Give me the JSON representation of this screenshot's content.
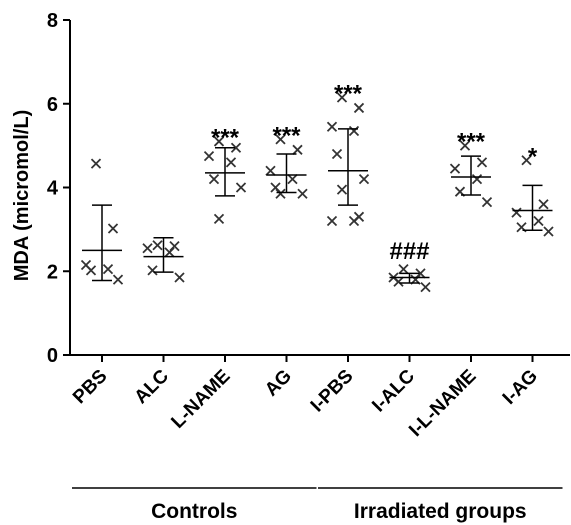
{
  "chart_data": {
    "type": "scatter",
    "ylabel": "MDA (micromol/L)",
    "ylim": [
      0,
      8
    ],
    "yticks": [
      "0",
      "2",
      "4",
      "6",
      "8"
    ],
    "categories": [
      "PBS",
      "ALC",
      "L-NAME",
      "AG",
      "I-PBS",
      "I-ALC",
      "I-L-NAME",
      "I-AG"
    ],
    "points": [
      [
        4.57,
        3.02,
        2.15,
        2.05,
        2.02,
        1.8
      ],
      [
        2.62,
        2.6,
        2.55,
        2.45,
        2.02,
        1.85
      ],
      [
        5.1,
        4.95,
        4.75,
        4.6,
        4.2,
        4.0,
        3.25
      ],
      [
        5.15,
        4.9,
        4.4,
        4.2,
        4.0,
        3.85,
        3.85
      ],
      [
        6.15,
        5.9,
        5.45,
        5.35,
        4.8,
        4.2,
        3.95,
        3.3,
        3.2,
        3.2
      ],
      [
        2.05,
        1.95,
        1.85,
        1.8,
        1.75,
        1.62
      ],
      [
        5.0,
        4.6,
        4.45,
        4.2,
        3.9,
        3.65
      ],
      [
        4.65,
        3.6,
        3.4,
        3.2,
        3.05,
        2.95
      ]
    ],
    "means": [
      2.5,
      2.35,
      4.35,
      4.3,
      4.4,
      1.85,
      4.25,
      3.45
    ],
    "err_high": [
      3.58,
      2.8,
      4.95,
      4.8,
      5.4,
      1.95,
      4.75,
      4.05
    ],
    "err_low": [
      1.78,
      1.98,
      3.8,
      3.88,
      3.58,
      1.72,
      3.82,
      2.98
    ],
    "significance": [
      "",
      "",
      "***",
      "***",
      "***",
      "###",
      "***",
      "*"
    ],
    "groups": [
      {
        "label": "Controls",
        "from": 0,
        "to": 3
      },
      {
        "label": "Irradiated groups",
        "from": 4,
        "to": 7
      }
    ],
    "marker": "x",
    "grid": false
  }
}
